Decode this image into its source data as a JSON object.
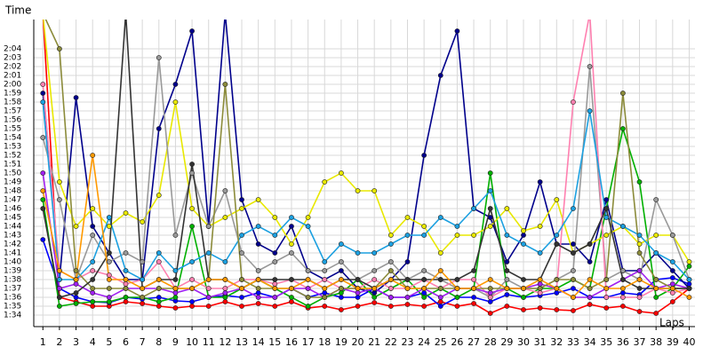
{
  "chart_data": {
    "type": "line",
    "y_label": "Time",
    "x_label": "Laps",
    "x": [
      1,
      2,
      3,
      4,
      5,
      6,
      7,
      8,
      9,
      10,
      11,
      12,
      13,
      14,
      15,
      16,
      17,
      18,
      19,
      20,
      21,
      22,
      23,
      24,
      25,
      26,
      27,
      28,
      29,
      30,
      31,
      32,
      33,
      34,
      35,
      36,
      37,
      38,
      39,
      40
    ],
    "xlim": [
      0.45,
      40.35
    ],
    "ylim": [
      92.7,
      127.3
    ],
    "yticks": [
      {
        "value": 94,
        "label": "1:34"
      },
      {
        "value": 95,
        "label": "1:35"
      },
      {
        "value": 96,
        "label": "1:36"
      },
      {
        "value": 97,
        "label": "1:37"
      },
      {
        "value": 98,
        "label": "1:38"
      },
      {
        "value": 99,
        "label": "1:39"
      },
      {
        "value": 100,
        "label": "1:40"
      },
      {
        "value": 101,
        "label": "1:41"
      },
      {
        "value": 102,
        "label": "1:42"
      },
      {
        "value": 103,
        "label": "1:43"
      },
      {
        "value": 104,
        "label": "1:44"
      },
      {
        "value": 105,
        "label": "1:45"
      },
      {
        "value": 106,
        "label": "1:46"
      },
      {
        "value": 107,
        "label": "1:47"
      },
      {
        "value": 108,
        "label": "1:48"
      },
      {
        "value": 109,
        "label": "1:49"
      },
      {
        "value": 110,
        "label": "1:50"
      },
      {
        "value": 111,
        "label": "1:51"
      },
      {
        "value": 112,
        "label": "1:52"
      },
      {
        "value": 113,
        "label": "1:53"
      },
      {
        "value": 114,
        "label": "1:54"
      },
      {
        "value": 115,
        "label": "1:55"
      },
      {
        "value": 116,
        "label": "1:56"
      },
      {
        "value": 117,
        "label": "1:57"
      },
      {
        "value": 118,
        "label": "1:58"
      },
      {
        "value": 119,
        "label": "1:59"
      },
      {
        "value": 120,
        "label": "2:00"
      },
      {
        "value": 121,
        "label": "2:01"
      },
      {
        "value": 122,
        "label": "2:02"
      },
      {
        "value": 123,
        "label": "2:03"
      },
      {
        "value": 124,
        "label": "2:04"
      }
    ],
    "grid": true,
    "series": [
      {
        "color": "#ff0000",
        "values": [
          128,
          96,
          95.5,
          95,
          95,
          95.5,
          95.3,
          95,
          94.8,
          95,
          95,
          95.5,
          95,
          95.3,
          95,
          95.5,
          94.8,
          95,
          94.6,
          95,
          95.4,
          95,
          95.2,
          95,
          95.5,
          95,
          95.3,
          94.2,
          95,
          94.6,
          94.8,
          94.6,
          94.5,
          95.2,
          94.8,
          95,
          94.4,
          94.2,
          95.5,
          97
        ]
      },
      {
        "color": "#0000ff",
        "values": [
          102.5,
          97,
          96,
          95.5,
          95.4,
          96,
          95.8,
          96,
          95.6,
          95.5,
          96,
          96.2,
          96,
          96.5,
          96,
          97,
          96,
          96.5,
          96,
          96,
          97,
          96,
          96,
          96.5,
          95,
          96,
          96,
          95.5,
          96.3,
          96,
          96.2,
          96.5,
          97,
          96,
          96,
          96.5,
          96.3,
          98,
          98.2,
          97.5
        ]
      },
      {
        "color": "#00008b",
        "values": [
          119,
          98,
          118.5,
          104,
          101,
          98,
          98,
          115,
          120,
          126,
          104,
          128,
          107,
          102,
          101,
          104,
          99,
          98,
          99,
          97,
          96.5,
          98,
          100,
          112,
          121,
          126,
          106,
          105,
          100,
          103,
          109,
          102,
          102,
          100,
          107,
          99,
          99,
          101,
          99,
          97
        ]
      },
      {
        "color": "#00b000",
        "values": [
          107,
          95,
          95.3,
          95.5,
          95.5,
          96,
          96,
          95.5,
          96,
          104,
          96,
          96,
          97,
          98,
          97,
          96,
          95,
          96,
          96.5,
          98,
          96,
          97,
          98,
          96,
          97,
          96,
          97,
          110,
          97,
          96,
          97,
          97,
          98,
          97,
          106,
          115,
          109,
          96,
          97,
          99.5
        ]
      },
      {
        "color": "#e8e800",
        "values": [
          128,
          109,
          104,
          106,
          104,
          105.5,
          104.5,
          107.5,
          118,
          106,
          104,
          105,
          106,
          107,
          105,
          102,
          105,
          109,
          110,
          108,
          108,
          103,
          105,
          104,
          101,
          103,
          103,
          104,
          106,
          103.5,
          104,
          107,
          101,
          102,
          103,
          104,
          102,
          103,
          103,
          100
        ]
      },
      {
        "color": "#999999",
        "values": [
          114,
          107,
          98,
          103,
          100,
          101,
          100,
          123,
          103,
          110,
          104,
          108,
          101,
          99,
          100,
          101,
          99,
          99,
          100,
          98,
          99,
          100,
          98,
          99,
          98,
          97,
          97,
          96,
          98,
          97,
          97,
          98,
          99,
          122,
          98,
          99,
          98,
          107,
          103,
          98
        ]
      },
      {
        "color": "#ff80b0",
        "values": [
          120,
          99,
          98,
          99,
          98.5,
          97.5,
          98,
          100,
          97,
          98,
          97,
          97,
          98,
          98,
          97.5,
          98,
          97,
          98,
          97,
          97,
          98,
          97,
          97,
          98,
          97,
          98,
          98,
          96,
          97,
          97,
          96.5,
          97,
          118,
          128,
          96,
          96,
          96,
          97,
          96.5,
          97
        ]
      },
      {
        "color": "#1ca0e0",
        "values": [
          118,
          98,
          98,
          100,
          105,
          99,
          98,
          101,
          99,
          100,
          101,
          100,
          103,
          104,
          103,
          105,
          104,
          100,
          102,
          101,
          101,
          102,
          103,
          103,
          105,
          104,
          106,
          108,
          103,
          102,
          101,
          103,
          106,
          117,
          105,
          104,
          103,
          101,
          100,
          98
        ]
      },
      {
        "color": "#a020f0",
        "values": [
          110,
          97,
          97.5,
          96.5,
          96,
          97,
          97,
          97,
          96.5,
          97,
          96,
          96.5,
          97,
          96,
          96,
          97,
          97,
          96,
          97,
          96.5,
          97,
          96,
          96,
          97,
          96,
          97,
          97,
          96.5,
          97,
          97,
          97.5,
          97,
          96,
          96,
          97,
          98,
          99,
          97,
          97.5,
          97
        ]
      },
      {
        "color": "#8b8b3a",
        "values": [
          128,
          124,
          99,
          97,
          97,
          97,
          96,
          97,
          97,
          97,
          98,
          120,
          98,
          97,
          97,
          97,
          96,
          96,
          97,
          97,
          97,
          99,
          97,
          97,
          97,
          97,
          97,
          97,
          97,
          97,
          97,
          98,
          98,
          97,
          98,
          119,
          101,
          98,
          97,
          97
        ]
      },
      {
        "color": "#333333",
        "values": [
          106,
          96,
          96.5,
          98,
          101,
          128,
          97,
          98,
          98,
          111,
          98,
          98,
          97,
          98,
          98,
          98,
          98,
          97,
          98,
          98,
          97,
          98,
          98,
          98,
          98,
          98,
          99,
          106,
          99,
          98,
          98,
          102,
          101,
          102,
          106,
          98,
          97,
          97,
          97,
          97
        ]
      },
      {
        "color": "#ff9900",
        "values": [
          108,
          99,
          98,
          112,
          98,
          98,
          97,
          98,
          97,
          97,
          98,
          98,
          97,
          98,
          97,
          97,
          98,
          97,
          98,
          97,
          97,
          98,
          97,
          97,
          99,
          97,
          97,
          98,
          97,
          97,
          98,
          97,
          96,
          98,
          97,
          97,
          98,
          97,
          97,
          96
        ]
      }
    ]
  }
}
